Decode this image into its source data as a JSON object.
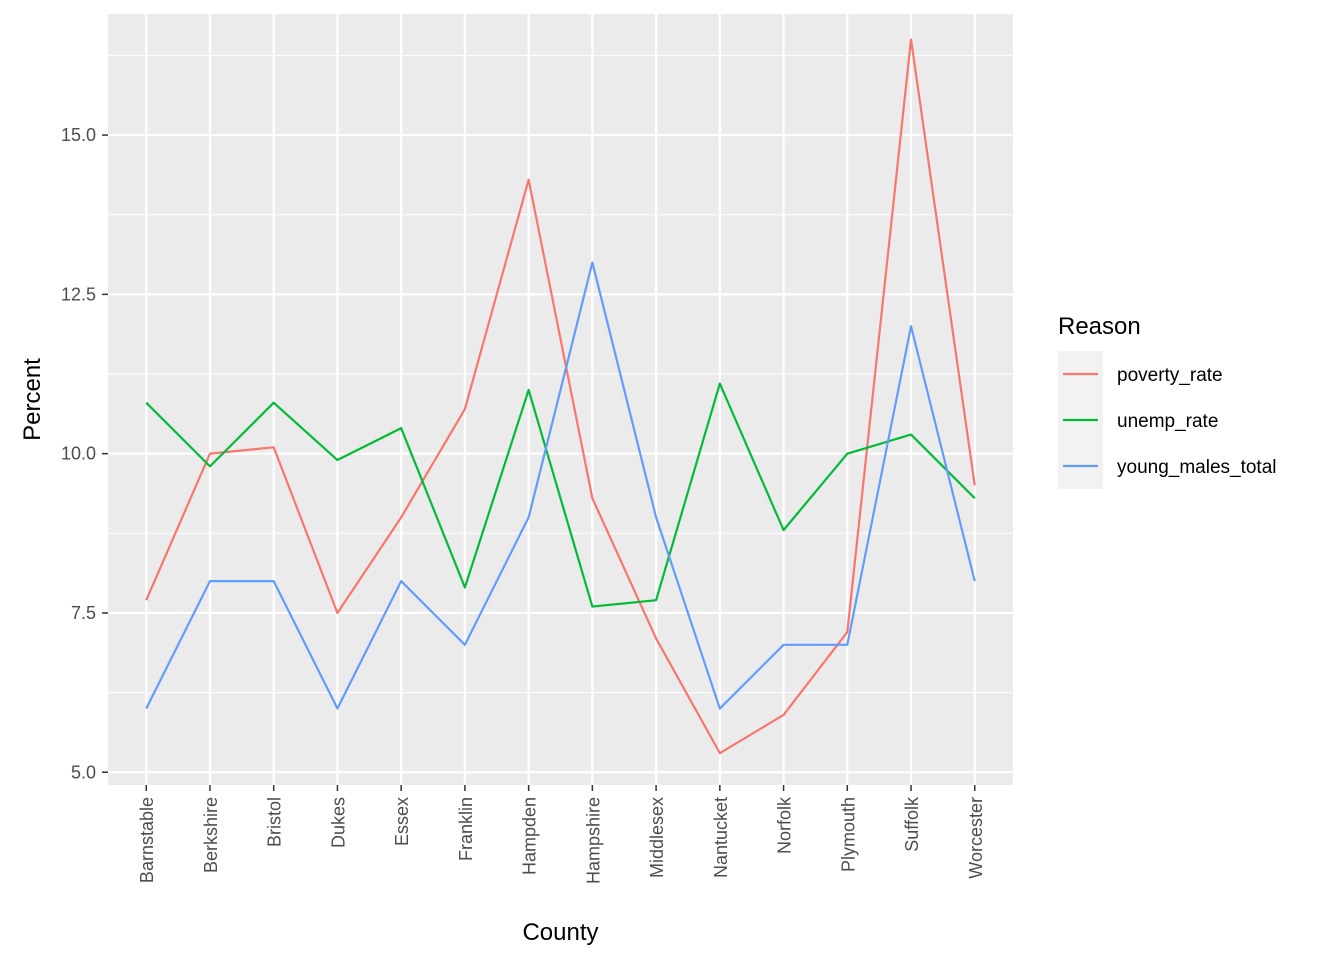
{
  "chart_data": {
    "type": "line",
    "title": "",
    "xlabel": "County",
    "ylabel": "Percent",
    "ylim": [
      4.8,
      16.9
    ],
    "yticks": [
      5.0,
      7.5,
      10.0,
      12.5,
      15.0
    ],
    "ytick_labels": [
      "5.0",
      "7.5",
      "10.0",
      "12.5",
      "15.0"
    ],
    "grid": true,
    "x_tick_rotation": "vertical",
    "categories": [
      "Barnstable",
      "Berkshire",
      "Bristol",
      "Dukes",
      "Essex",
      "Franklin",
      "Hampden",
      "Hampshire",
      "Middlesex",
      "Nantucket",
      "Norfolk",
      "Plymouth",
      "Suffolk",
      "Worcester"
    ],
    "legend": {
      "title": "Reason",
      "placement": "right"
    },
    "series": [
      {
        "name": "poverty_rate",
        "color": "#F8766D",
        "values": [
          7.7,
          10.0,
          10.1,
          7.5,
          9.0,
          10.7,
          14.3,
          9.3,
          7.1,
          5.3,
          5.9,
          7.2,
          16.5,
          9.5
        ]
      },
      {
        "name": "unemp_rate",
        "color": "#00BA38",
        "values": [
          10.8,
          9.8,
          10.8,
          9.9,
          10.4,
          7.9,
          11.0,
          7.6,
          7.7,
          11.1,
          8.8,
          10.0,
          10.3,
          9.3
        ]
      },
      {
        "name": "young_males_total",
        "color": "#619CFF",
        "values": [
          6.0,
          8.0,
          8.0,
          6.0,
          8.0,
          7.0,
          9.0,
          13.0,
          9.0,
          6.0,
          7.0,
          7.0,
          12.0,
          8.0
        ]
      }
    ]
  }
}
